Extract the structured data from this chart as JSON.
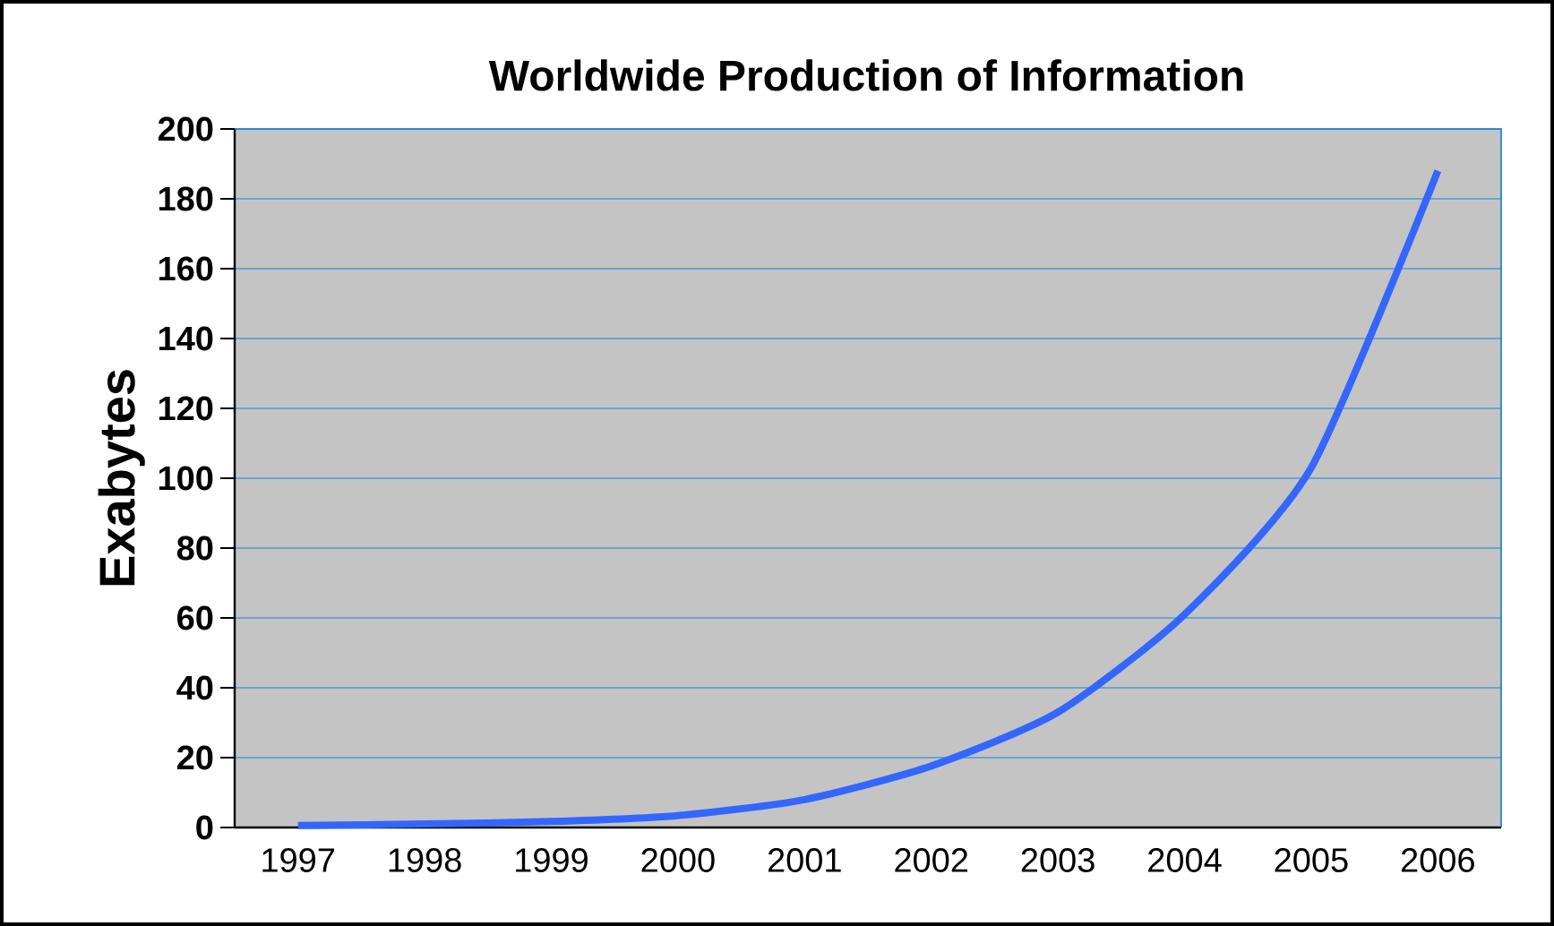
{
  "chart_data": {
    "type": "line",
    "title": "Worldwide Production of Information",
    "ylabel": "Exabytes",
    "categories": [
      "1997",
      "1998",
      "1999",
      "2000",
      "2001",
      "2002",
      "2003",
      "2004",
      "2005",
      "2006"
    ],
    "series": [
      {
        "color": "#3366ff",
        "values": [
          0.6,
          1,
          1.7,
          3.4,
          8,
          17.6,
          33,
          61,
          103,
          188
        ]
      }
    ],
    "ylim": [
      0,
      200
    ],
    "yticks": [
      0,
      20,
      40,
      60,
      80,
      100,
      120,
      140,
      160,
      180,
      200
    ],
    "grid": "y",
    "marker": "none",
    "line_style": "solid"
  }
}
